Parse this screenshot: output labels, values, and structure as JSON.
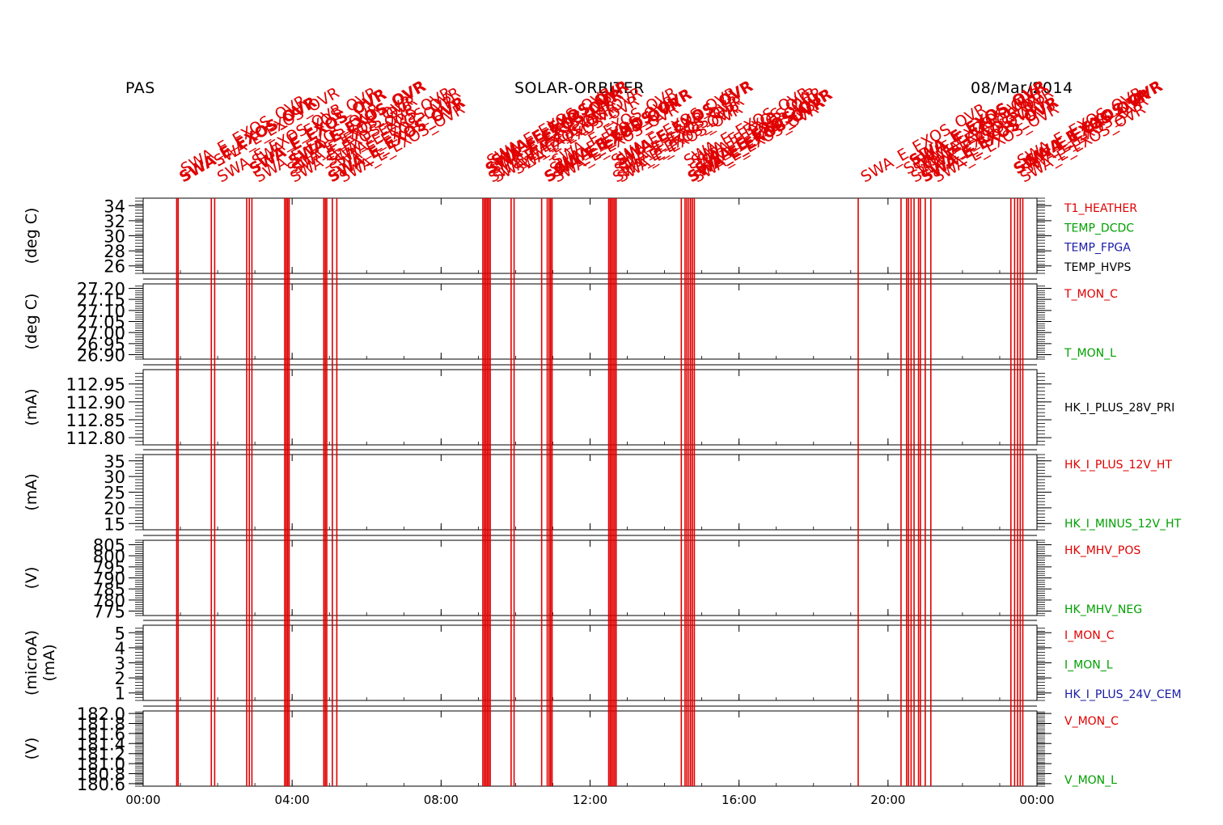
{
  "header": {
    "left": "PAS",
    "center": "SOLAR-ORBITER",
    "right": "08/Mar/2014"
  },
  "colors": {
    "event": "#e00000",
    "red": "#e00000",
    "green": "#00a000",
    "blue": "#1a1aa8",
    "black": "#000000",
    "axis": "#000000"
  },
  "chart_data": {
    "type": "line",
    "x_axis": {
      "range_hours": [
        0,
        24
      ],
      "tick_labels": [
        "00:00",
        "04:00",
        "08:00",
        "12:00",
        "16:00",
        "20:00",
        "00:00"
      ],
      "tick_hours": [
        0,
        4,
        8,
        12,
        16,
        20,
        24
      ]
    },
    "event_label": "SWA_E_EXOS_OVR",
    "event_times_hours": [
      0.9,
      0.94,
      1.83,
      1.92,
      2.78,
      2.85,
      2.92,
      3.8,
      3.84,
      3.88,
      3.92,
      4.85,
      4.89,
      4.93,
      5.08,
      5.2,
      9.12,
      9.16,
      9.2,
      9.24,
      9.28,
      9.32,
      9.88,
      9.96,
      10.7,
      10.85,
      10.9,
      10.94,
      10.98,
      12.5,
      12.54,
      12.58,
      12.62,
      12.66,
      12.7,
      14.45,
      14.55,
      14.6,
      14.65,
      14.7,
      14.75,
      14.8,
      19.2,
      20.35,
      20.5,
      20.55,
      20.62,
      20.7,
      20.82,
      20.87,
      21.0,
      21.15,
      23.3,
      23.4,
      23.48,
      23.55,
      23.62
    ],
    "panels": [
      {
        "ylabel": "(deg C)",
        "ticks": [
          "34",
          "32",
          "30",
          "28",
          "26"
        ],
        "tick_values": [
          34,
          32,
          30,
          28,
          26
        ],
        "ylim": [
          25,
          35
        ],
        "legend": [
          {
            "label": "T1_HEATHER",
            "color": "red"
          },
          {
            "label": "TEMP_DCDC",
            "color": "green"
          },
          {
            "label": "TEMP_FPGA",
            "color": "blue"
          },
          {
            "label": "TEMP_HVPS",
            "color": "black"
          }
        ]
      },
      {
        "ylabel": "(deg C)",
        "ticks": [
          "27.20",
          "27.15",
          "27.10",
          "27.05",
          "27.00",
          "26.95",
          "26.90"
        ],
        "tick_values": [
          27.2,
          27.15,
          27.1,
          27.05,
          27.0,
          26.95,
          26.9
        ],
        "ylim": [
          26.88,
          27.22
        ],
        "legend": [
          {
            "label": "T_MON_C",
            "color": "red"
          },
          {
            "label": "T_MON_L",
            "color": "green"
          }
        ]
      },
      {
        "ylabel": "(mA)",
        "ticks": [
          "112.95",
          "112.90",
          "112.85",
          "112.80"
        ],
        "tick_values": [
          112.95,
          112.9,
          112.85,
          112.8
        ],
        "ylim": [
          112.78,
          112.99
        ],
        "legend": [
          {
            "label": "HK_I_PLUS_28V_PRI",
            "color": "black"
          }
        ]
      },
      {
        "ylabel": "(mA)",
        "ticks": [
          "35",
          "30",
          "25",
          "20",
          "15"
        ],
        "tick_values": [
          35,
          30,
          25,
          20,
          15
        ],
        "ylim": [
          13,
          37
        ],
        "legend": [
          {
            "label": "HK_I_PLUS_12V_HT",
            "color": "red"
          },
          {
            "label": "HK_I_MINUS_12V_HT",
            "color": "green"
          }
        ]
      },
      {
        "ylabel": "(V)",
        "ticks": [
          "805",
          "800",
          "795",
          "790",
          "785",
          "780",
          "775"
        ],
        "tick_values": [
          805,
          800,
          795,
          790,
          785,
          780,
          775
        ],
        "ylim": [
          773,
          807
        ],
        "legend": [
          {
            "label": "HK_MHV_POS",
            "color": "red"
          },
          {
            "label": "HK_MHV_NEG",
            "color": "green"
          }
        ]
      },
      {
        "ylabel": "(microA)",
        "ylabel2": "(mA)",
        "ticks": [
          "5",
          "4",
          "3",
          "2",
          "1"
        ],
        "tick_values": [
          5,
          4,
          3,
          2,
          1
        ],
        "ylim": [
          0.5,
          5.5
        ],
        "legend": [
          {
            "label": "I_MON_C",
            "color": "red"
          },
          {
            "label": "I_MON_L",
            "color": "green"
          },
          {
            "label": "HK_I_PLUS_24V_CEM",
            "color": "blue"
          }
        ]
      },
      {
        "ylabel": "(V)",
        "ticks": [
          "182.0",
          "181.8",
          "181.6",
          "181.4",
          "181.2",
          "181.0",
          "180.8",
          "180.6"
        ],
        "tick_values": [
          182.0,
          181.8,
          181.6,
          181.4,
          181.2,
          181.0,
          180.8,
          180.6
        ],
        "ylim": [
          180.55,
          182.05
        ],
        "legend": [
          {
            "label": "V_MON_C",
            "color": "red"
          },
          {
            "label": "V_MON_L",
            "color": "green"
          }
        ]
      }
    ]
  }
}
